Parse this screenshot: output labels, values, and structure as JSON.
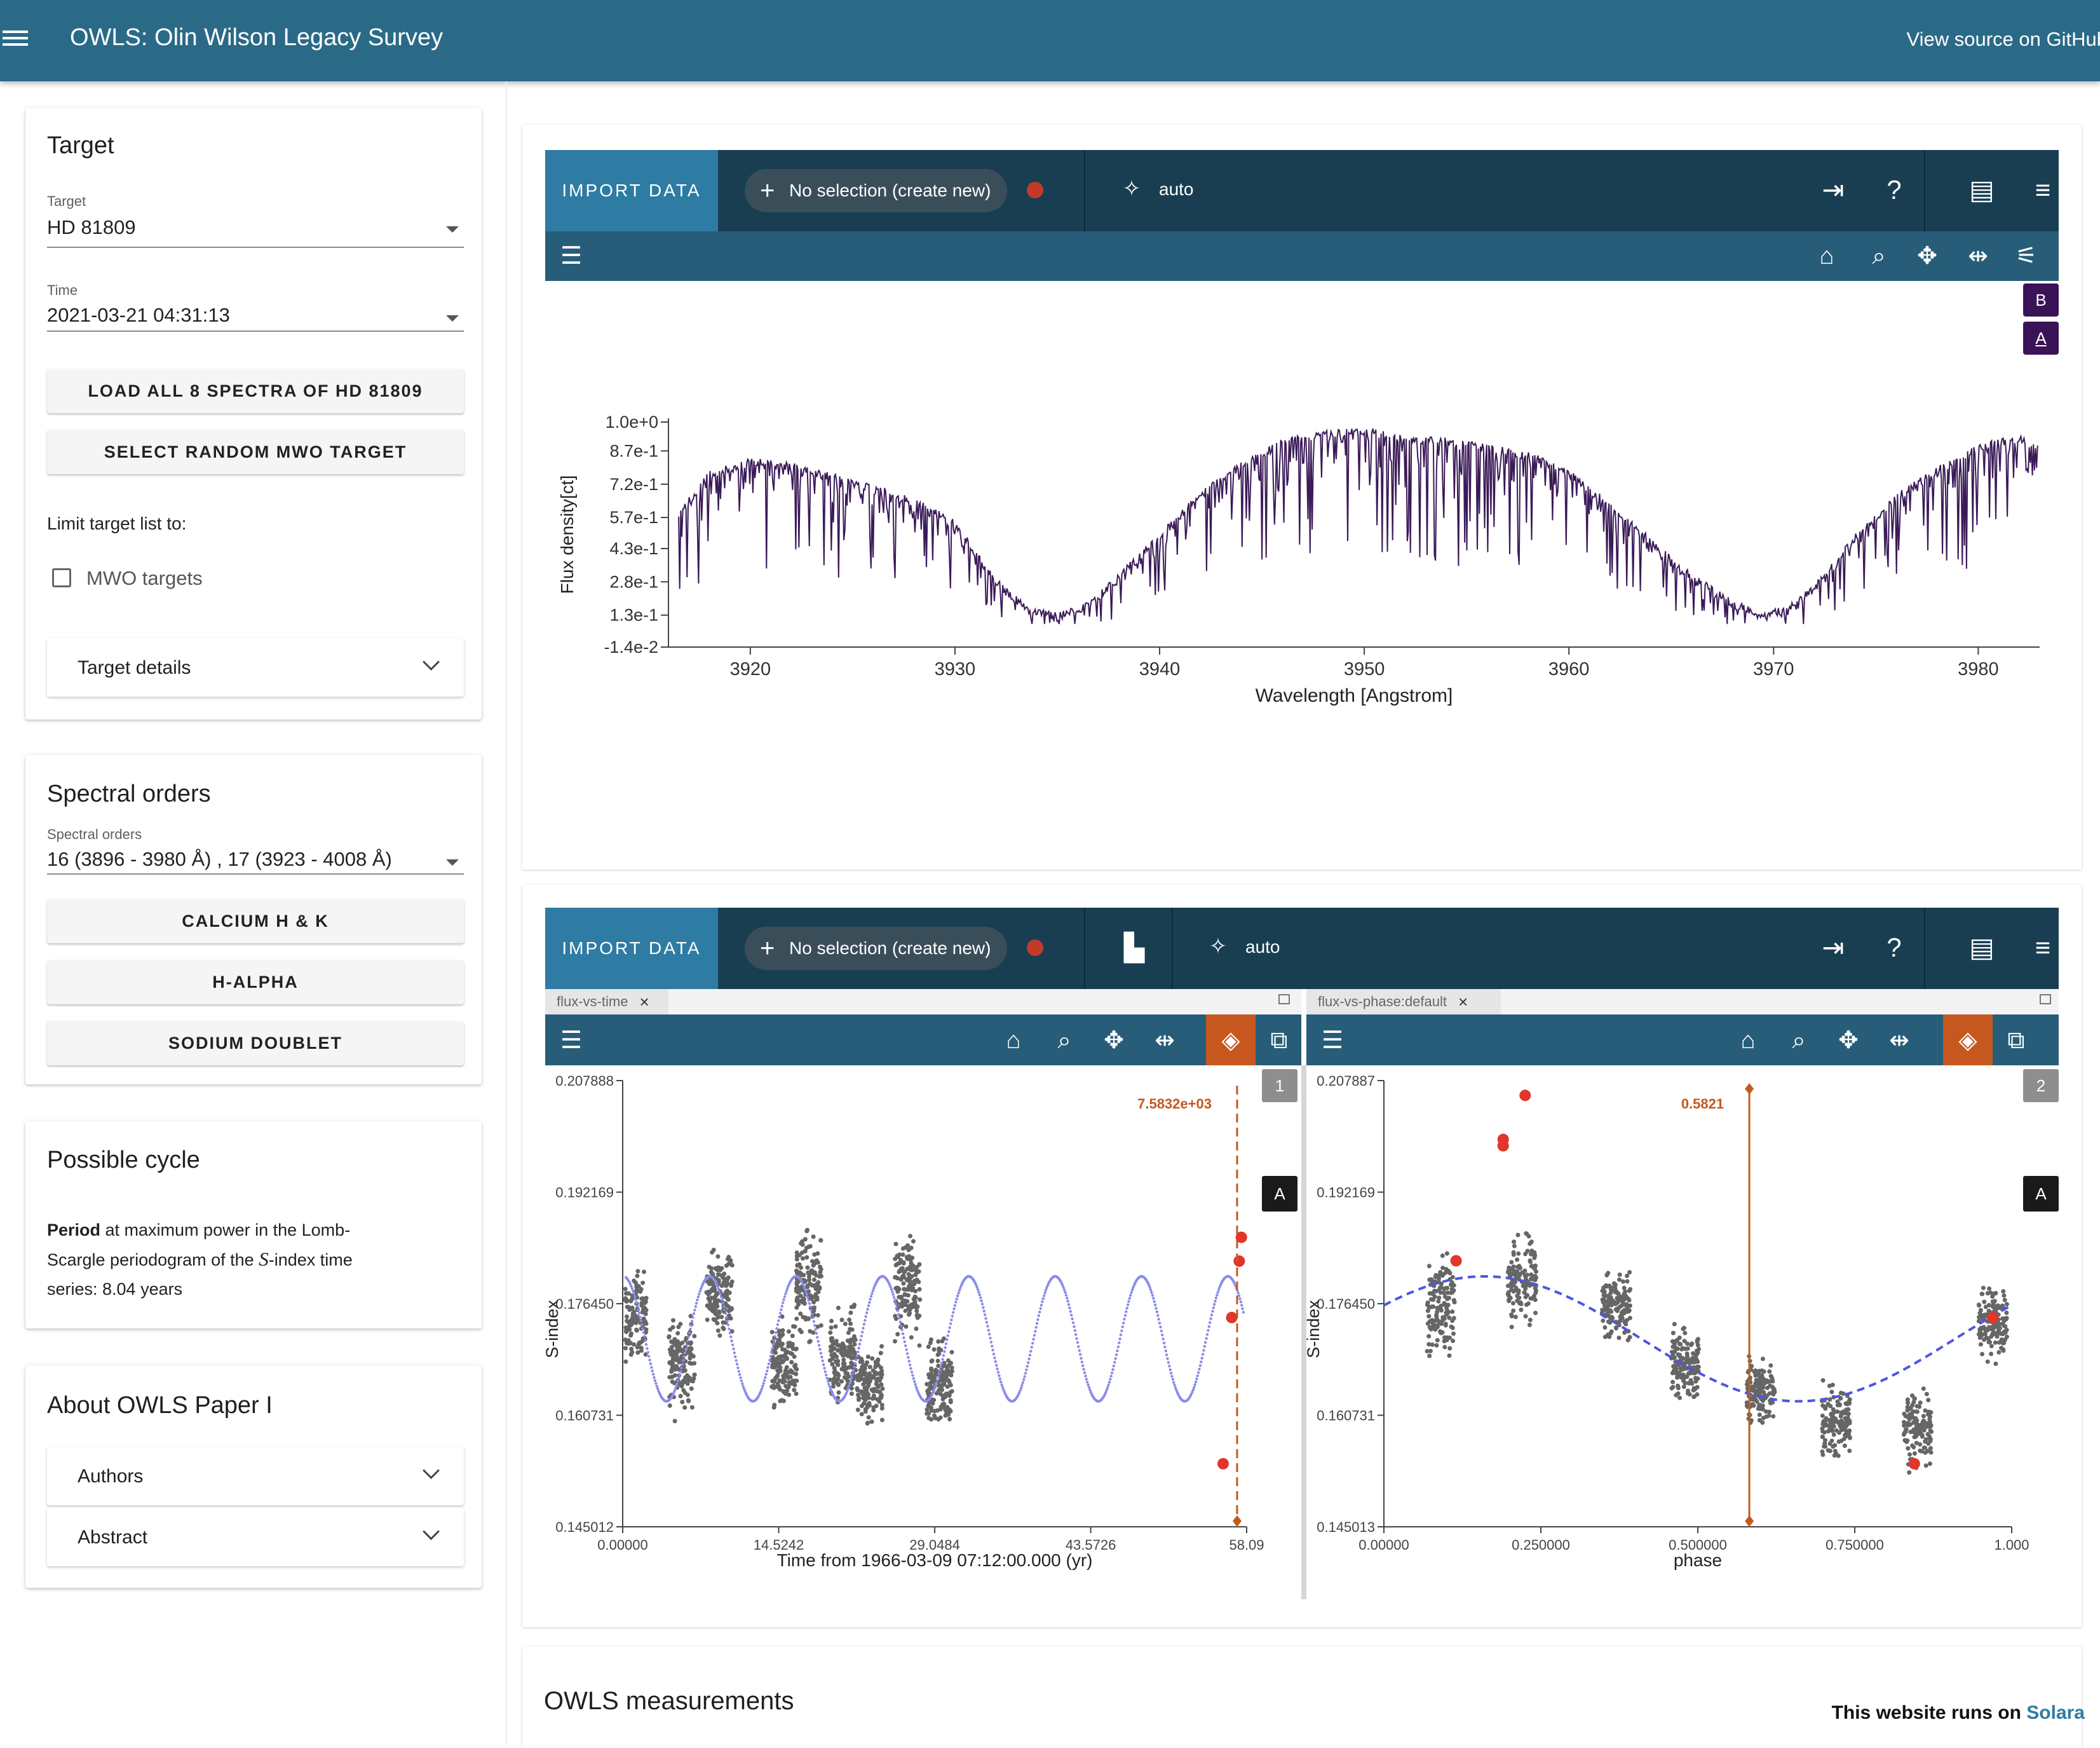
{
  "app": {
    "title": "OWLS: Olin Wilson Legacy Survey",
    "github_link": "View source on GitHub"
  },
  "sidebar": {
    "target_card": {
      "title": "Target",
      "target_label": "Target",
      "target_value": "HD 81809",
      "time_label": "Time",
      "time_value": "2021-03-21 04:31:13",
      "load_button": "LOAD ALL 8 SPECTRA OF HD 81809",
      "random_button": "SELECT RANDOM MWO TARGET",
      "limit_label": "Limit target list to:",
      "mwo_checkbox_label": "MWO targets",
      "mwo_checked": false,
      "details_label": "Target details"
    },
    "orders_card": {
      "title": "Spectral orders",
      "field_label": "Spectral orders",
      "field_value": "16 (3896 - 3980 Å) , 17 (3923 - 4008 Å)",
      "buttons": [
        "CALCIUM H & K",
        "H-ALPHA",
        "SODIUM DOUBLET"
      ]
    },
    "cycle_card": {
      "title": "Possible cycle",
      "bold": "Period",
      "line1": " at maximum power in the Lomb-",
      "line2a": "Scargle periodogram of the ",
      "line2var": "S",
      "line2b": "-index time",
      "line3": "series: 8.04 years"
    },
    "about_card": {
      "title": "About OWLS Paper I",
      "items": [
        "Authors",
        "Abstract"
      ]
    }
  },
  "viewer_top": {
    "import_label": "IMPORT DATA",
    "selection_label": "No selection (create new)",
    "mode_label": "auto",
    "layer_badges": [
      "B",
      "A"
    ],
    "accent": "#2e7ba3",
    "toolbar_color": "#193e52"
  },
  "viewer_bottom": {
    "import_label": "IMPORT DATA",
    "selection_label": "No selection (create new)",
    "mode_label": "auto",
    "left_tab": "flux-vs-time",
    "right_tab": "flux-vs-phase:default",
    "left_marker_label": "7.5832e+03",
    "right_marker_label": "0.5821",
    "left_viewer_number": "1",
    "right_viewer_number": "2",
    "layer_badge": "A",
    "active_tool_color": "#c6581f"
  },
  "bottom": {
    "measurements_title": "OWLS measurements",
    "runs_on_prefix": "This website runs on ",
    "runs_on_link": "Solara"
  },
  "chart_data": [
    {
      "type": "line",
      "title": "",
      "xlabel": "Wavelength [Angstrom]",
      "ylabel": "Flux density[ct]",
      "xlim": [
        3916,
        3983
      ],
      "ylim": [
        -0.014,
        1.0
      ],
      "xticks": [
        3920,
        3930,
        3940,
        3950,
        3960,
        3970,
        3980
      ],
      "yticks": [
        "1.0e+0",
        "8.7e-1",
        "7.2e-1",
        "5.7e-1",
        "4.3e-1",
        "2.8e-1",
        "1.3e-1",
        "-1.4e-2"
      ],
      "ytick_values": [
        1.0,
        0.87,
        0.72,
        0.57,
        0.43,
        0.28,
        0.13,
        -0.014
      ],
      "series": [
        {
          "color": "#3a1a57",
          "envelope": {
            "x": [
              3916.5,
              3918,
              3920,
              3922,
              3924,
              3926,
              3928,
              3930,
              3932,
              3933.5,
              3935,
              3936.5,
              3938,
              3940,
              3942,
              3944,
              3946,
              3948,
              3950,
              3952,
              3954,
              3956,
              3958,
              3960,
              3962,
              3964,
              3966,
              3968,
              3969.5,
              3971,
              3972.5,
              3974,
              3976,
              3978,
              3980,
              3982,
              3983
            ],
            "y": [
              0.6,
              0.78,
              0.84,
              0.82,
              0.77,
              0.72,
              0.66,
              0.56,
              0.3,
              0.18,
              0.14,
              0.19,
              0.32,
              0.5,
              0.69,
              0.82,
              0.93,
              0.96,
              0.98,
              0.94,
              0.93,
              0.9,
              0.87,
              0.79,
              0.64,
              0.48,
              0.32,
              0.2,
              0.14,
              0.19,
              0.32,
              0.5,
              0.68,
              0.8,
              0.9,
              0.95,
              0.9
            ]
          }
        }
      ]
    },
    {
      "type": "scatter",
      "title": "",
      "xlabel": "Time from 1966-03-09 07:12:00.000 (yr)",
      "ylabel": "S-index",
      "xlim": [
        0.0,
        58.09
      ],
      "ylim": [
        0.145012,
        0.207888
      ],
      "xticks": [
        "0.00000",
        "14.5242",
        "29.0484",
        "43.5726",
        "58.09"
      ],
      "xtick_values": [
        0.0,
        14.5242,
        29.0484,
        43.5726,
        58.09
      ],
      "yticks": [
        "0.207888",
        "0.192169",
        "0.176450",
        "0.160731",
        "0.145012"
      ],
      "ytick_values": [
        0.207888,
        0.192169,
        0.17645,
        0.160731,
        0.145012
      ],
      "series": [
        {
          "color": "#666666",
          "clusters": [
            {
              "x": 1.0,
              "y": 0.1745,
              "spread": 0.0075
            },
            {
              "x": 5.5,
              "y": 0.168,
              "spread": 0.0085
            },
            {
              "x": 9.0,
              "y": 0.178,
              "spread": 0.0075
            },
            {
              "x": 15.0,
              "y": 0.168,
              "spread": 0.008
            },
            {
              "x": 17.3,
              "y": 0.179,
              "spread": 0.009
            },
            {
              "x": 20.5,
              "y": 0.169,
              "spread": 0.008
            },
            {
              "x": 23.0,
              "y": 0.165,
              "spread": 0.007
            },
            {
              "x": 26.5,
              "y": 0.179,
              "spread": 0.0085
            },
            {
              "x": 29.5,
              "y": 0.165,
              "spread": 0.008
            }
          ]
        },
        {
          "color": "#8a8ce8",
          "model_period": 8.04,
          "model_mean": 0.1715,
          "model_amplitude": 0.0088
        },
        {
          "color": "#e0362c",
          "x": [
            57.4,
            56.7,
            55.9,
            57.6
          ],
          "y": [
            0.18245,
            0.1745,
            0.1539,
            0.1858
          ]
        }
      ],
      "vertical_line": 57.2
    },
    {
      "type": "scatter",
      "title": "",
      "xlabel": "phase",
      "ylabel": "S-index",
      "xlim": [
        0.0,
        1.0
      ],
      "ylim": [
        0.145013,
        0.207887
      ],
      "xticks": [
        "0.00000",
        "0.250000",
        "0.500000",
        "0.750000",
        "1.000"
      ],
      "xtick_values": [
        0.0,
        0.25,
        0.5,
        0.75,
        1.0
      ],
      "yticks": [
        "0.207887",
        "0.192169",
        "0.176450",
        "0.160731",
        "0.145013"
      ],
      "ytick_values": [
        0.207887,
        0.192169,
        0.17645,
        0.160731,
        0.145013
      ],
      "series": [
        {
          "color": "#666666",
          "clusters": [
            {
              "x": 0.09,
              "y": 0.176,
              "spread": 0.008
            },
            {
              "x": 0.22,
              "y": 0.18,
              "spread": 0.007
            },
            {
              "x": 0.37,
              "y": 0.176,
              "spread": 0.006
            },
            {
              "x": 0.48,
              "y": 0.168,
              "spread": 0.006
            },
            {
              "x": 0.6,
              "y": 0.164,
              "spread": 0.006
            },
            {
              "x": 0.72,
              "y": 0.16,
              "spread": 0.006
            },
            {
              "x": 0.85,
              "y": 0.159,
              "spread": 0.006
            },
            {
              "x": 0.97,
              "y": 0.174,
              "spread": 0.006
            }
          ]
        },
        {
          "color": "#4f55e0",
          "model_mean": 0.1715,
          "model_amplitude": 0.0088,
          "model_peak_phase": 0.16
        },
        {
          "color": "#e0362c",
          "x": [
            0.225,
            0.19,
            0.19,
            0.115,
            0.97,
            0.845
          ],
          "y": [
            0.2058,
            0.1996,
            0.1987,
            0.1825,
            0.1745,
            0.1539
          ]
        }
      ],
      "vertical_line": 0.5821
    }
  ]
}
